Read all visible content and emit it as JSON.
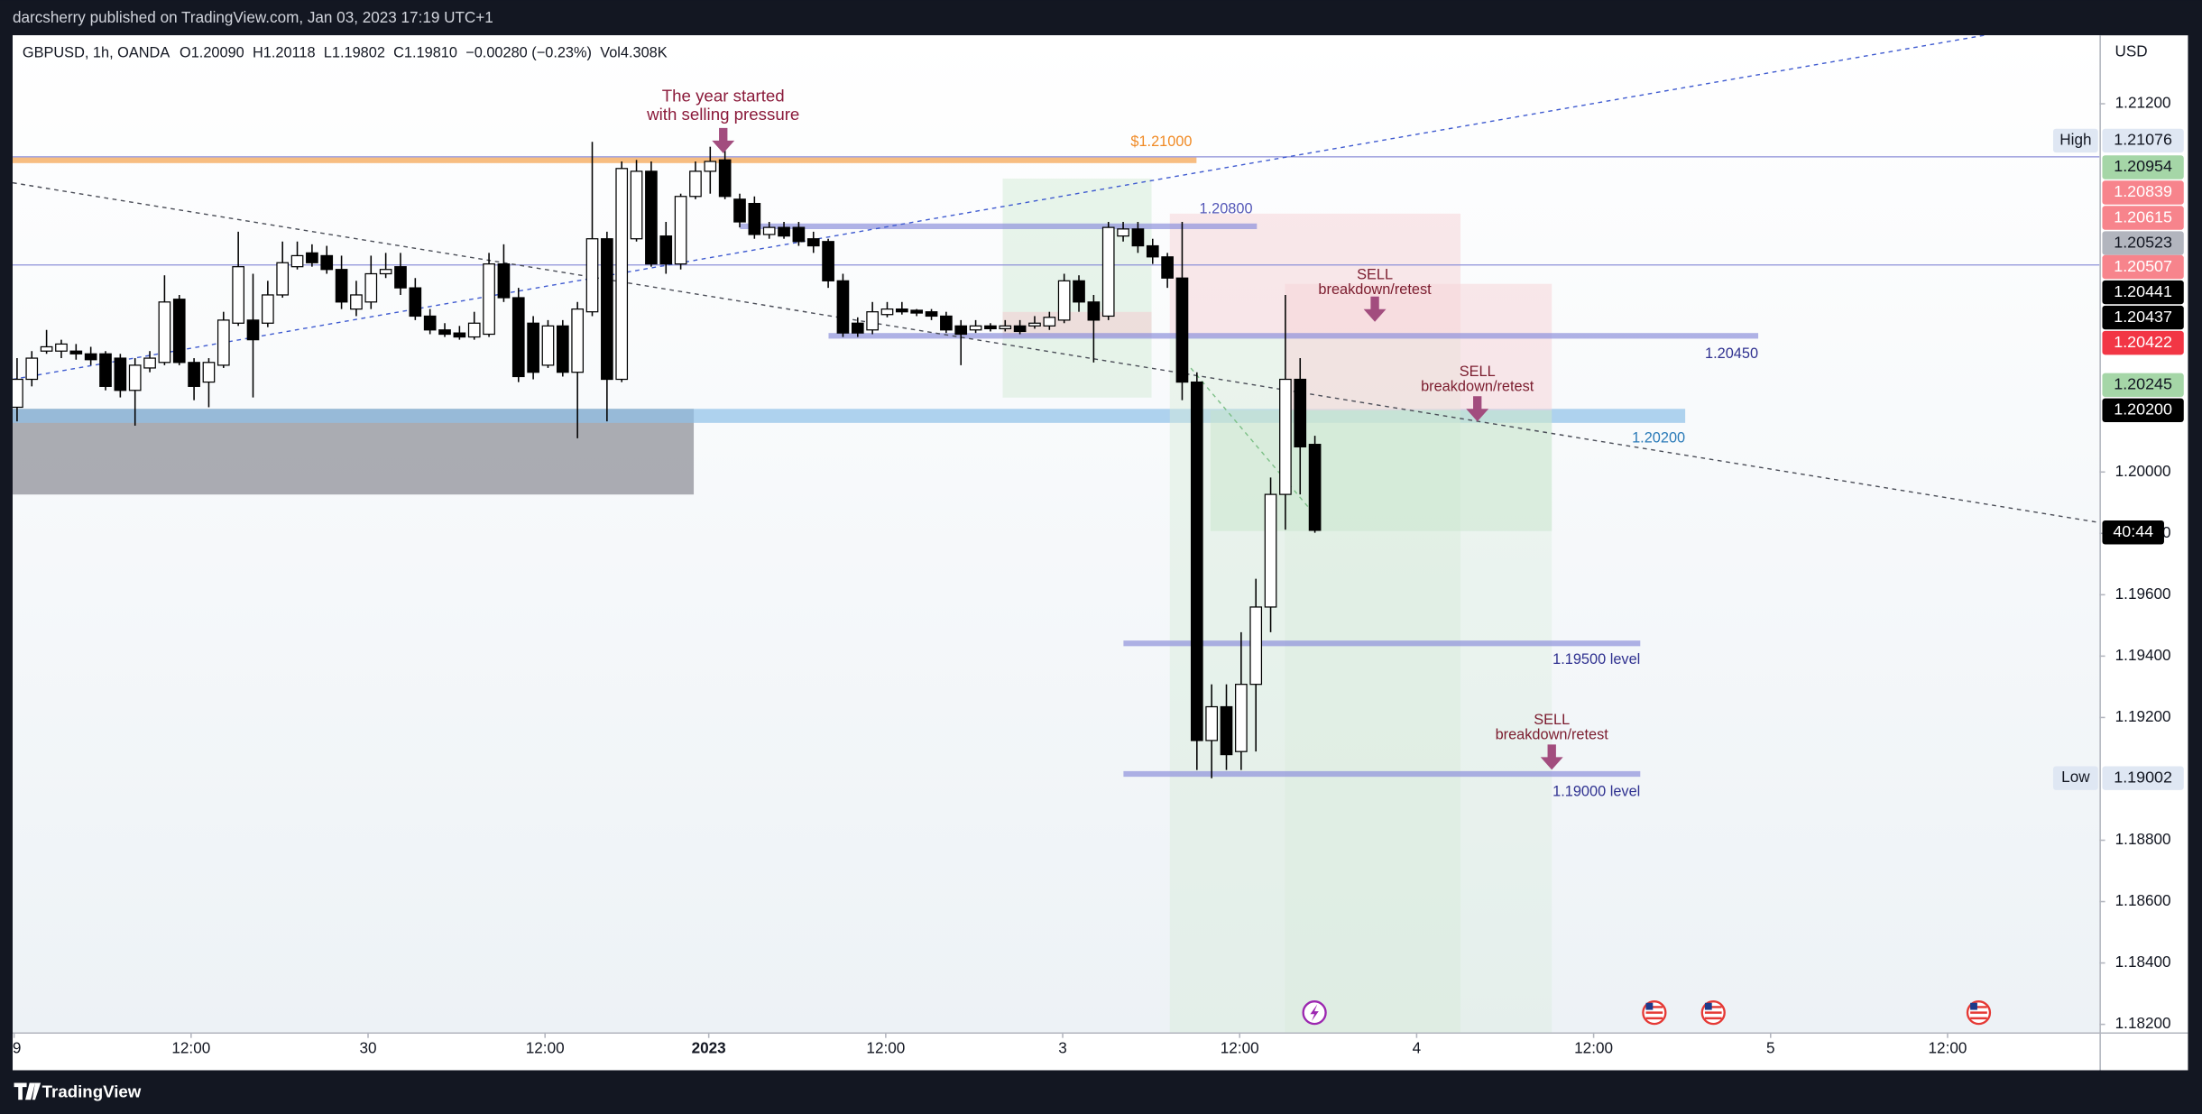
{
  "header": {
    "publisher": "darcsherry published on TradingView.com, Jan 03, 2023 17:19 UTC+1"
  },
  "footer": {
    "brand": "TradingView"
  },
  "chart_data": {
    "type": "candlestick",
    "legend": {
      "symbol": "GBPUSD, 1h, OANDA",
      "open": "O1.20090",
      "high": "H1.20118",
      "low": "L1.19802",
      "close": "C1.19810",
      "change": "−0.00280 (−0.23%)",
      "volume": "Vol4.308K"
    },
    "currency": "USD",
    "x": [
      0,
      1,
      2,
      3,
      4,
      5,
      6,
      7,
      8,
      9,
      10,
      11,
      12,
      13,
      14,
      15,
      16,
      17,
      18,
      19,
      20,
      21,
      22,
      23,
      24,
      25,
      26,
      27,
      28,
      29,
      30,
      31,
      32,
      33,
      34,
      35,
      36,
      37,
      38,
      39,
      40,
      41,
      42,
      43,
      44,
      45,
      46,
      47,
      48,
      49,
      50,
      51,
      52,
      53,
      54,
      55,
      56,
      57,
      58,
      59,
      60,
      61,
      62,
      63,
      64,
      65,
      66,
      67,
      68,
      69,
      70,
      71,
      72,
      73,
      74,
      75,
      76,
      77,
      78,
      79,
      80,
      81,
      82,
      83,
      84,
      85,
      86,
      87,
      88
    ],
    "open": [
      1.20211,
      1.20302,
      1.20394,
      1.20394,
      1.20394,
      1.20385,
      1.20385,
      1.20371,
      1.20266,
      1.20339,
      1.20357,
      1.20563,
      1.20357,
      1.20293,
      1.20348,
      1.20485,
      1.20495,
      1.20485,
      1.20577,
      1.20669,
      1.20714,
      1.20705,
      1.2066,
      1.20531,
      1.20554,
      1.20646,
      1.20669,
      1.206,
      1.20508,
      1.20463,
      1.20453,
      1.2044,
      1.20449,
      1.20678,
      1.20568,
      1.20485,
      1.20348,
      1.20476,
      1.20325,
      1.20522,
      1.2076,
      1.20302,
      1.2076,
      1.2098,
      1.20769,
      1.20678,
      1.20898,
      1.2098,
      1.21017,
      1.20889,
      1.20875,
      1.20774,
      1.20797,
      1.20797,
      1.2076,
      1.20751,
      1.20623,
      1.20485,
      1.20463,
      1.20513,
      1.20531,
      1.20527,
      1.20522,
      1.20508,
      1.20476,
      1.20463,
      1.20476,
      1.20467,
      1.20476,
      1.20476,
      1.20476,
      1.20495,
      1.20623,
      1.20554,
      1.20508,
      1.20769,
      1.20792,
      1.20737,
      1.20701,
      1.20632,
      1.20293,
      1.19125,
      1.19235,
      1.19089,
      1.19308,
      1.1956,
      1.19927,
      1.20302,
      1.2009
    ],
    "high": [
      1.20371,
      1.20394,
      1.20463,
      1.20431,
      1.20417,
      1.20408,
      1.20394,
      1.20385,
      1.20371,
      1.20394,
      1.20641,
      1.20577,
      1.20371,
      1.20371,
      1.20522,
      1.20783,
      1.20646,
      1.20623,
      1.20751,
      1.20751,
      1.20742,
      1.20737,
      1.20705,
      1.20623,
      1.20705,
      1.20714,
      1.20714,
      1.20632,
      1.20531,
      1.20485,
      1.20476,
      1.20522,
      1.20714,
      1.20742,
      1.206,
      1.20508,
      1.20495,
      1.20495,
      1.20554,
      1.21076,
      1.20783,
      1.21012,
      1.21017,
      1.21012,
      1.20815,
      1.20907,
      1.21012,
      1.2106,
      1.2105,
      1.20907,
      1.20898,
      1.20815,
      1.20815,
      1.20815,
      1.20783,
      1.2076,
      1.20646,
      1.20504,
      1.20554,
      1.20554,
      1.20554,
      1.20531,
      1.20531,
      1.20522,
      1.20495,
      1.20495,
      1.20485,
      1.20495,
      1.20495,
      1.20508,
      1.20522,
      1.20646,
      1.20641,
      1.20577,
      1.20815,
      1.20815,
      1.20815,
      1.2076,
      1.20714,
      1.20815,
      1.20325,
      1.19308,
      1.19308,
      1.19478,
      1.19652,
      1.19982,
      1.20577,
      1.20371,
      1.20118
    ],
    "low": [
      1.20165,
      1.20279,
      1.20385,
      1.20371,
      1.20366,
      1.20348,
      1.20266,
      1.20243,
      1.20151,
      1.20325,
      1.20348,
      1.20348,
      1.20234,
      1.20211,
      1.20339,
      1.20476,
      1.20243,
      1.20472,
      1.20568,
      1.2066,
      1.20669,
      1.20646,
      1.20531,
      1.20508,
      1.20531,
      1.20632,
      1.20577,
      1.20495,
      1.20449,
      1.2044,
      1.20431,
      1.20431,
      1.2044,
      1.20554,
      1.20293,
      1.20302,
      1.20339,
      1.20311,
      1.2011,
      1.20508,
      1.20165,
      1.20293,
      1.20751,
      1.20669,
      1.20646,
      1.2066,
      1.20889,
      1.20907,
      1.20889,
      1.20797,
      1.2076,
      1.2076,
      1.2076,
      1.20737,
      1.20714,
      1.206,
      1.2044,
      1.2044,
      1.20449,
      1.20504,
      1.20513,
      1.20508,
      1.20495,
      1.20453,
      1.20348,
      1.20453,
      1.20458,
      1.20458,
      1.20449,
      1.20467,
      1.20463,
      1.20485,
      1.20522,
      1.20357,
      1.20495,
      1.20751,
      1.20714,
      1.20678,
      1.206,
      1.20234,
      1.19029,
      1.19002,
      1.19029,
      1.19029,
      1.19089,
      1.19478,
      1.19812,
      1.19927,
      1.19802
    ],
    "close": [
      1.20302,
      1.20371,
      1.20408,
      1.20417,
      1.20385,
      1.20366,
      1.20279,
      1.20266,
      1.20348,
      1.20371,
      1.20554,
      1.20357,
      1.20279,
      1.20357,
      1.20495,
      1.20669,
      1.20431,
      1.20577,
      1.20682,
      1.20705,
      1.20682,
      1.2066,
      1.20554,
      1.20577,
      1.20646,
      1.2066,
      1.206,
      1.20508,
      1.20463,
      1.20449,
      1.2044,
      1.20485,
      1.20678,
      1.20568,
      1.20311,
      1.20325,
      1.20476,
      1.20325,
      1.20531,
      1.2076,
      1.20302,
      1.20989,
      1.2098,
      1.20678,
      1.20678,
      1.20898,
      1.2098,
      1.21012,
      1.20898,
      1.20815,
      1.20774,
      1.20797,
      1.20769,
      1.20751,
      1.20737,
      1.20623,
      1.20453,
      1.20453,
      1.20522,
      1.20531,
      1.20522,
      1.20518,
      1.20508,
      1.20463,
      1.20449,
      1.20476,
      1.20467,
      1.20476,
      1.20458,
      1.20485,
      1.20504,
      1.20623,
      1.20554,
      1.20495,
      1.20797,
      1.20792,
      1.20737,
      1.20701,
      1.20632,
      1.20293,
      1.19125,
      1.19235,
      1.19079,
      1.19308,
      1.1956,
      1.19927,
      1.20302,
      1.20082,
      1.1981
    ],
    "up_color": "#ffffff",
    "down_color": "#000000",
    "edge_color": "#000000",
    "xlim": [
      -0.3,
      141.2
    ],
    "xticks": [
      {
        "value": -0.2,
        "label": "9"
      },
      {
        "value": 11.8,
        "label": "12:00"
      },
      {
        "value": 23.8,
        "label": "30"
      },
      {
        "value": 35.8,
        "label": "12:00"
      },
      {
        "value": 46.9,
        "label": "2023"
      },
      {
        "value": 58.9,
        "label": "12:00"
      },
      {
        "value": 70.9,
        "label": "3"
      },
      {
        "value": 82.9,
        "label": "12:00"
      },
      {
        "value": 94.9,
        "label": "4"
      },
      {
        "value": 106.9,
        "label": "12:00"
      },
      {
        "value": 118.9,
        "label": "5"
      },
      {
        "value": 130.9,
        "label": "12:00"
      }
    ],
    "ylim": [
      1.18174,
      1.21423
    ],
    "yticks": [
      {
        "value": 1.212,
        "label": "1.21200"
      },
      {
        "value": 1.2,
        "label": "1.20000"
      },
      {
        "value": 1.198,
        "label": "1.19800"
      },
      {
        "value": 1.196,
        "label": "1.19600"
      },
      {
        "value": 1.194,
        "label": "1.19400"
      },
      {
        "value": 1.192,
        "label": "1.19200"
      },
      {
        "value": 1.188,
        "label": "1.18800"
      },
      {
        "value": 1.186,
        "label": "1.18600"
      },
      {
        "value": 1.184,
        "label": "1.18400"
      },
      {
        "value": 1.182,
        "label": "1.18200"
      }
    ],
    "annotations": [
      {
        "lines": [
          "The year started",
          "with selling pressure"
        ],
        "color": "#8b1a3a"
      },
      {
        "lines": [
          "$1.21000"
        ],
        "color": "#f08a24"
      },
      {
        "lines": [
          "1.20800"
        ],
        "color": "#5558b8"
      },
      {
        "lines": [
          "1.20450"
        ],
        "color": "#2f3190"
      },
      {
        "lines": [
          "1.20200"
        ],
        "color": "#2a7ab8"
      },
      {
        "lines": [
          "1.19500 level"
        ],
        "color": "#2f3190"
      },
      {
        "lines": [
          "1.19000 level"
        ],
        "color": "#2f3190"
      },
      {
        "lines": [
          "SELL",
          "breakdown/retest"
        ],
        "color": "#7b1c2e"
      },
      {
        "lines": [
          "SELL",
          "breakdown/retest"
        ],
        "color": "#7b1c2e"
      },
      {
        "lines": [
          "SELL",
          "breakdown/retest"
        ],
        "color": "#7b1c2e"
      }
    ],
    "price_labels": [
      {
        "text": "1.21076",
        "tag": "High",
        "bg": "#dfe7f3",
        "fg": "#131722"
      },
      {
        "text": "1.20954",
        "bg": "#a5d6a7",
        "fg": "#131722"
      },
      {
        "text": "1.20839",
        "bg": "#f7848c",
        "fg": "#ffffff"
      },
      {
        "text": "1.20615",
        "bg": "#f7848c",
        "fg": "#ffffff"
      },
      {
        "text": "1.20523",
        "bg": "#b2b5be",
        "fg": "#131722"
      },
      {
        "text": "1.20507",
        "bg": "#f7848c",
        "fg": "#ffffff"
      },
      {
        "text": "1.20441",
        "bg": "#000000",
        "fg": "#ffffff"
      },
      {
        "text": "1.20437",
        "bg": "#000000",
        "fg": "#ffffff"
      },
      {
        "text": "1.20422",
        "bg": "#f23645",
        "fg": "#ffffff"
      },
      {
        "text": "1.20245",
        "bg": "#a5d6a7",
        "fg": "#131722"
      },
      {
        "text": "1.20200",
        "bg": "#000000",
        "fg": "#ffffff"
      },
      {
        "text": "40:44",
        "bg": "#000000",
        "fg": "#ffffff"
      },
      {
        "text": "1.19002",
        "tag": "Low",
        "bg": "#dfe7f3",
        "fg": "#131722"
      }
    ]
  }
}
